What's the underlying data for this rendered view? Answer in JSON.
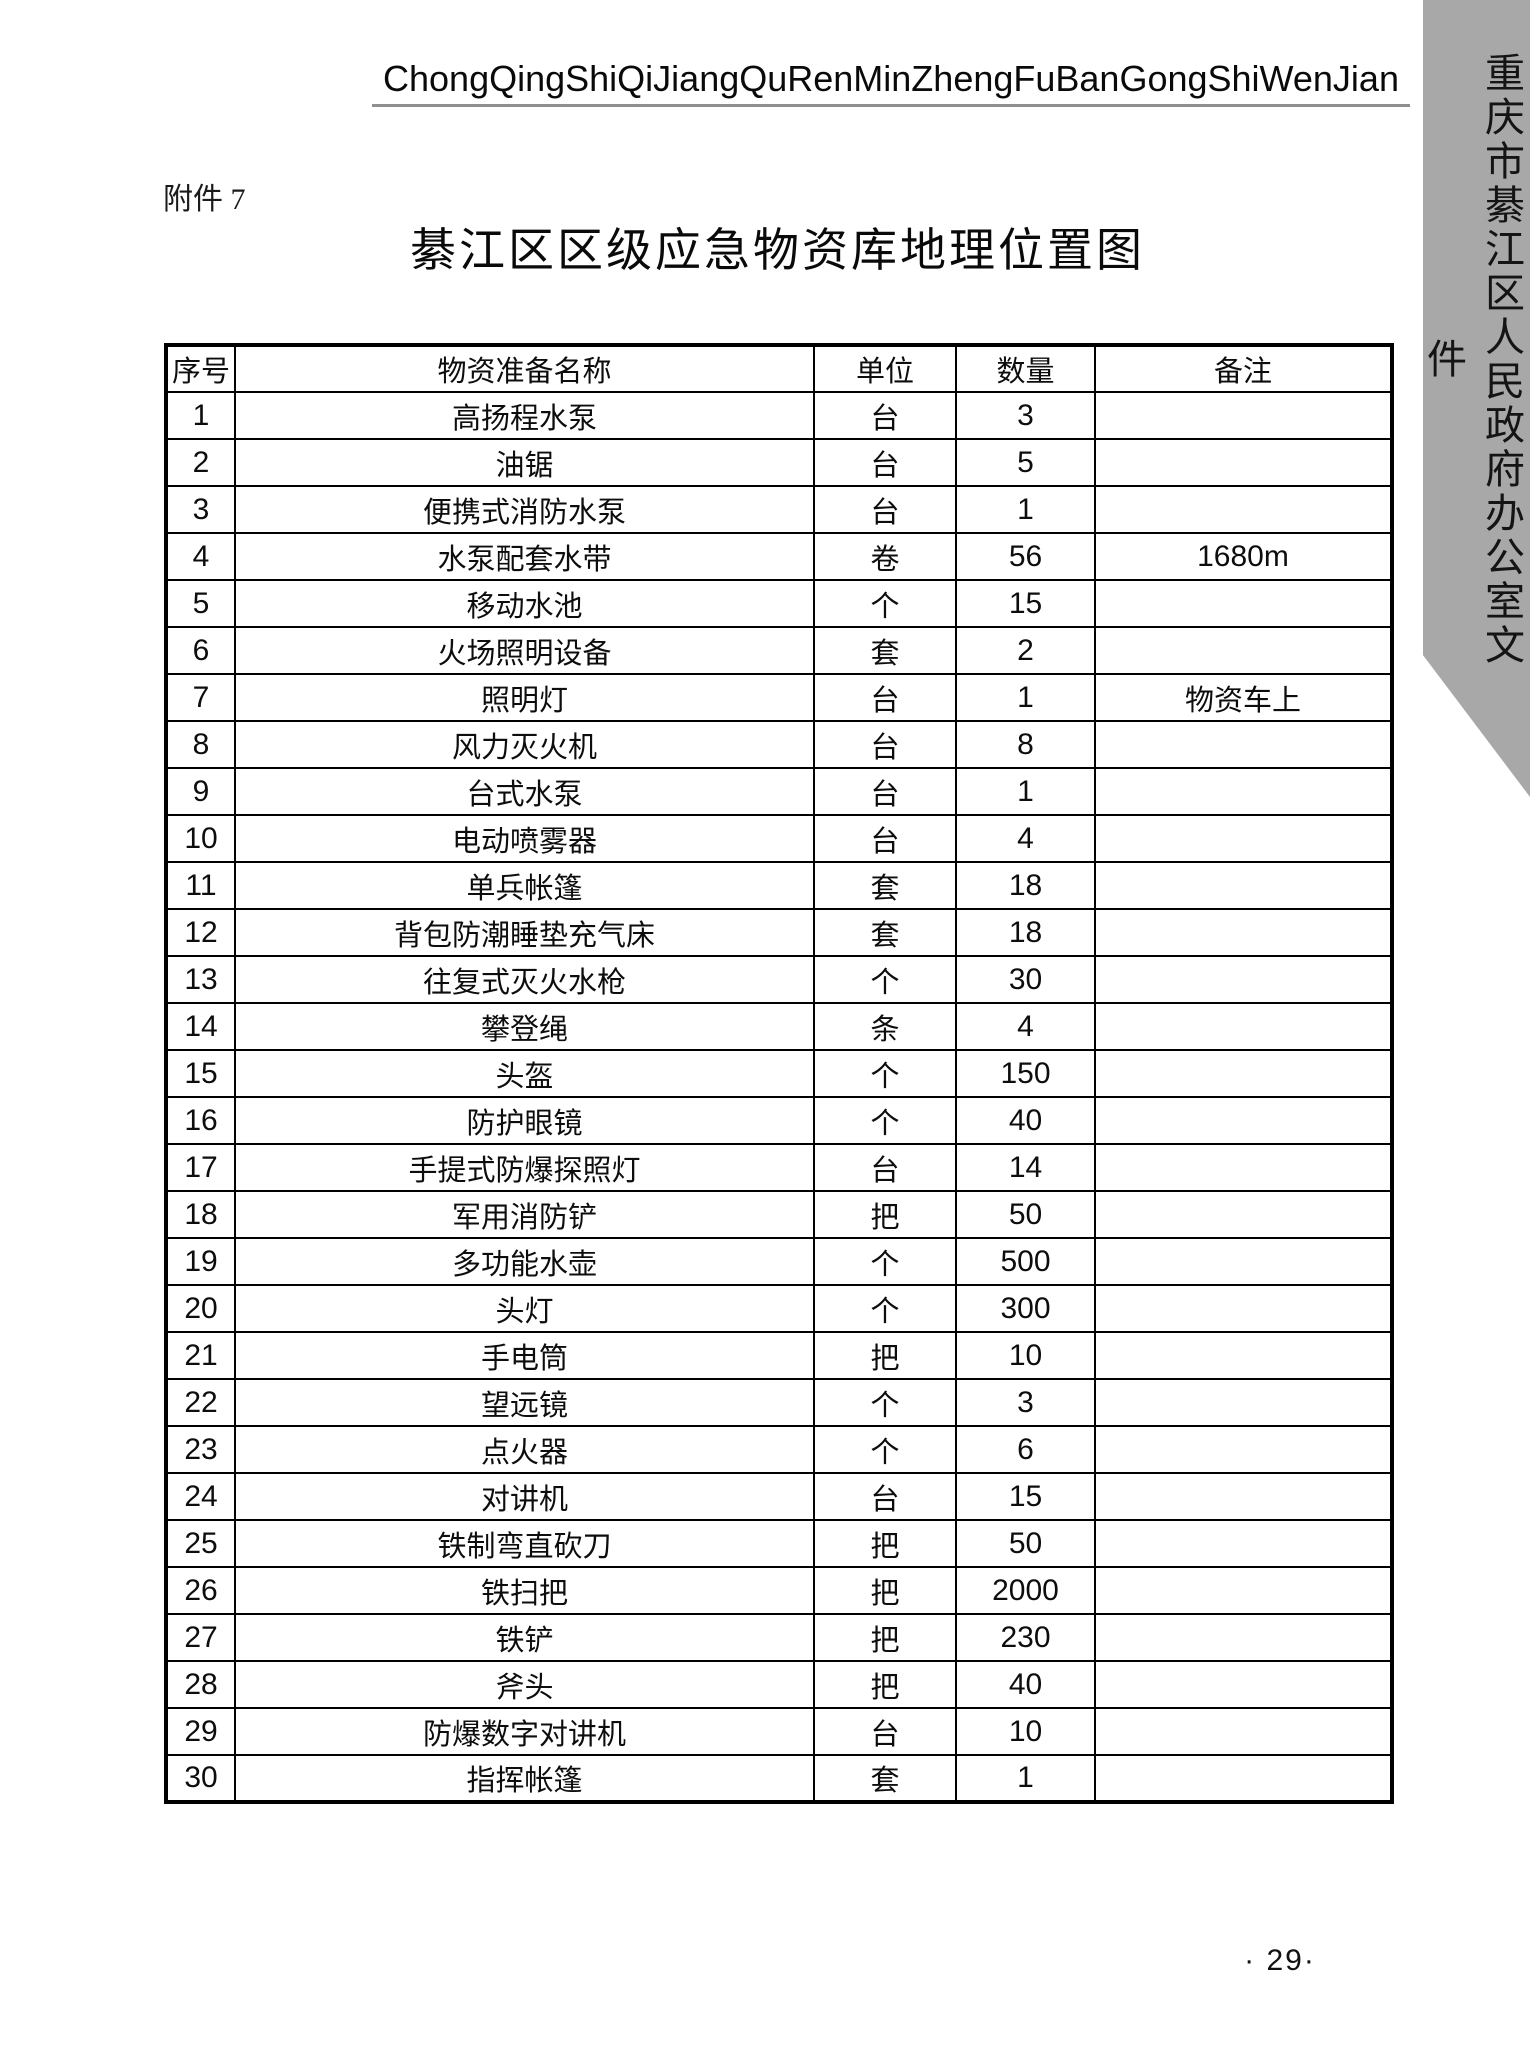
{
  "masthead": {
    "pinyin": "ChongQingShiQiJiangQuRenMinZhengFuBanGongShiWenJian"
  },
  "ribbon": {
    "text": "重庆市綦江区人民政府办公室文件",
    "background": "#a8a8a8"
  },
  "attachment_label": "附件 7",
  "title": "綦江区区级应急物资库地理位置图",
  "table": {
    "headers": [
      "序号",
      "物资准备名称",
      "单位",
      "数量",
      "备注"
    ],
    "rows": [
      {
        "no": "1",
        "name": "高扬程水泵",
        "unit": "台",
        "qty": "3",
        "note": ""
      },
      {
        "no": "2",
        "name": "油锯",
        "unit": "台",
        "qty": "5",
        "note": ""
      },
      {
        "no": "3",
        "name": "便携式消防水泵",
        "unit": "台",
        "qty": "1",
        "note": ""
      },
      {
        "no": "4",
        "name": "水泵配套水带",
        "unit": "卷",
        "qty": "56",
        "note": "1680m"
      },
      {
        "no": "5",
        "name": "移动水池",
        "unit": "个",
        "qty": "15",
        "note": ""
      },
      {
        "no": "6",
        "name": "火场照明设备",
        "unit": "套",
        "qty": "2",
        "note": ""
      },
      {
        "no": "7",
        "name": "照明灯",
        "unit": "台",
        "qty": "1",
        "note": "物资车上"
      },
      {
        "no": "8",
        "name": "风力灭火机",
        "unit": "台",
        "qty": "8",
        "note": ""
      },
      {
        "no": "9",
        "name": "台式水泵",
        "unit": "台",
        "qty": "1",
        "note": ""
      },
      {
        "no": "10",
        "name": "电动喷雾器",
        "unit": "台",
        "qty": "4",
        "note": ""
      },
      {
        "no": "11",
        "name": "单兵帐篷",
        "unit": "套",
        "qty": "18",
        "note": ""
      },
      {
        "no": "12",
        "name": "背包防潮睡垫充气床",
        "unit": "套",
        "qty": "18",
        "note": ""
      },
      {
        "no": "13",
        "name": "往复式灭火水枪",
        "unit": "个",
        "qty": "30",
        "note": ""
      },
      {
        "no": "14",
        "name": "攀登绳",
        "unit": "条",
        "qty": "4",
        "note": ""
      },
      {
        "no": "15",
        "name": "头盔",
        "unit": "个",
        "qty": "150",
        "note": ""
      },
      {
        "no": "16",
        "name": "防护眼镜",
        "unit": "个",
        "qty": "40",
        "note": ""
      },
      {
        "no": "17",
        "name": "手提式防爆探照灯",
        "unit": "台",
        "qty": "14",
        "note": ""
      },
      {
        "no": "18",
        "name": "军用消防铲",
        "unit": "把",
        "qty": "50",
        "note": ""
      },
      {
        "no": "19",
        "name": "多功能水壶",
        "unit": "个",
        "qty": "500",
        "note": ""
      },
      {
        "no": "20",
        "name": "头灯",
        "unit": "个",
        "qty": "300",
        "note": ""
      },
      {
        "no": "21",
        "name": "手电筒",
        "unit": "把",
        "qty": "10",
        "note": ""
      },
      {
        "no": "22",
        "name": "望远镜",
        "unit": "个",
        "qty": "3",
        "note": ""
      },
      {
        "no": "23",
        "name": "点火器",
        "unit": "个",
        "qty": "6",
        "note": ""
      },
      {
        "no": "24",
        "name": "对讲机",
        "unit": "台",
        "qty": "15",
        "note": ""
      },
      {
        "no": "25",
        "name": "铁制弯直砍刀",
        "unit": "把",
        "qty": "50",
        "note": ""
      },
      {
        "no": "26",
        "name": "铁扫把",
        "unit": "把",
        "qty": "2000",
        "note": ""
      },
      {
        "no": "27",
        "name": "铁铲",
        "unit": "把",
        "qty": "230",
        "note": ""
      },
      {
        "no": "28",
        "name": "斧头",
        "unit": "把",
        "qty": "40",
        "note": ""
      },
      {
        "no": "29",
        "name": "防爆数字对讲机",
        "unit": "台",
        "qty": "10",
        "note": ""
      },
      {
        "no": "30",
        "name": "指挥帐篷",
        "unit": "套",
        "qty": "1",
        "note": ""
      }
    ]
  },
  "page_number": "· 29·"
}
